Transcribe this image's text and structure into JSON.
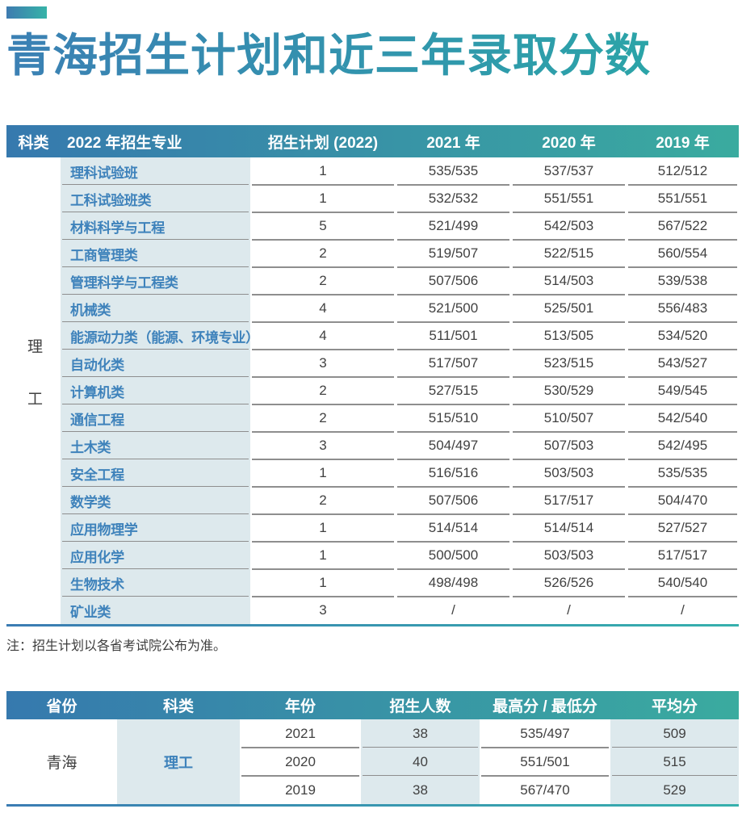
{
  "title": "青海招生计划和近三年录取分数",
  "note": "注：招生计划以各省考试院公布为准。",
  "colors": {
    "header_gradient_start": "#3679ae",
    "header_gradient_end": "#3aab9f",
    "title_gradient_start": "#3b80b4",
    "title_gradient_end": "#2ba4a8",
    "major_text": "#3e82bb",
    "light_cell_bg": "#dde9ed",
    "body_text": "#414141",
    "separator": "#8e8e8e"
  },
  "main_table": {
    "headers": [
      "科类",
      "2022 年招生专业",
      "招生计划 (2022)",
      "2021 年",
      "2020 年",
      "2019 年"
    ],
    "category": "理工",
    "rows": [
      {
        "major": "理科试验班",
        "plan": "1",
        "y2021": "535/535",
        "y2020": "537/537",
        "y2019": "512/512"
      },
      {
        "major": "工科试验班类",
        "plan": "1",
        "y2021": "532/532",
        "y2020": "551/551",
        "y2019": "551/551"
      },
      {
        "major": "材料科学与工程",
        "plan": "5",
        "y2021": "521/499",
        "y2020": "542/503",
        "y2019": "567/522"
      },
      {
        "major": "工商管理类",
        "plan": "2",
        "y2021": "519/507",
        "y2020": "522/515",
        "y2019": "560/554"
      },
      {
        "major": "管理科学与工程类",
        "plan": "2",
        "y2021": "507/506",
        "y2020": "514/503",
        "y2019": "539/538"
      },
      {
        "major": "机械类",
        "plan": "4",
        "y2021": "521/500",
        "y2020": "525/501",
        "y2019": "556/483"
      },
      {
        "major": "能源动力类（能源、环境专业）",
        "plan": "4",
        "y2021": "511/501",
        "y2020": "513/505",
        "y2019": "534/520"
      },
      {
        "major": "自动化类",
        "plan": "3",
        "y2021": "517/507",
        "y2020": "523/515",
        "y2019": "543/527"
      },
      {
        "major": "计算机类",
        "plan": "2",
        "y2021": "527/515",
        "y2020": "530/529",
        "y2019": "549/545"
      },
      {
        "major": "通信工程",
        "plan": "2",
        "y2021": "515/510",
        "y2020": "510/507",
        "y2019": "542/540"
      },
      {
        "major": "土木类",
        "plan": "3",
        "y2021": "504/497",
        "y2020": "507/503",
        "y2019": "542/495"
      },
      {
        "major": "安全工程",
        "plan": "1",
        "y2021": "516/516",
        "y2020": "503/503",
        "y2019": "535/535"
      },
      {
        "major": "数学类",
        "plan": "2",
        "y2021": "507/506",
        "y2020": "517/517",
        "y2019": "504/470"
      },
      {
        "major": "应用物理学",
        "plan": "1",
        "y2021": "514/514",
        "y2020": "514/514",
        "y2019": "527/527"
      },
      {
        "major": "应用化学",
        "plan": "1",
        "y2021": "500/500",
        "y2020": "503/503",
        "y2019": "517/517"
      },
      {
        "major": "生物技术",
        "plan": "1",
        "y2021": "498/498",
        "y2020": "526/526",
        "y2019": "540/540"
      },
      {
        "major": "矿业类",
        "plan": "3",
        "y2021": "/",
        "y2020": "/",
        "y2019": "/"
      }
    ]
  },
  "summary_table": {
    "headers": [
      "省份",
      "科类",
      "年份",
      "招生人数",
      "最高分 / 最低分",
      "平均分"
    ],
    "province": "青海",
    "category": "理工",
    "rows": [
      {
        "year": "2021",
        "count": "38",
        "hi_lo": "535/497",
        "avg": "509"
      },
      {
        "year": "2020",
        "count": "40",
        "hi_lo": "551/501",
        "avg": "515"
      },
      {
        "year": "2019",
        "count": "38",
        "hi_lo": "567/470",
        "avg": "529"
      }
    ]
  }
}
